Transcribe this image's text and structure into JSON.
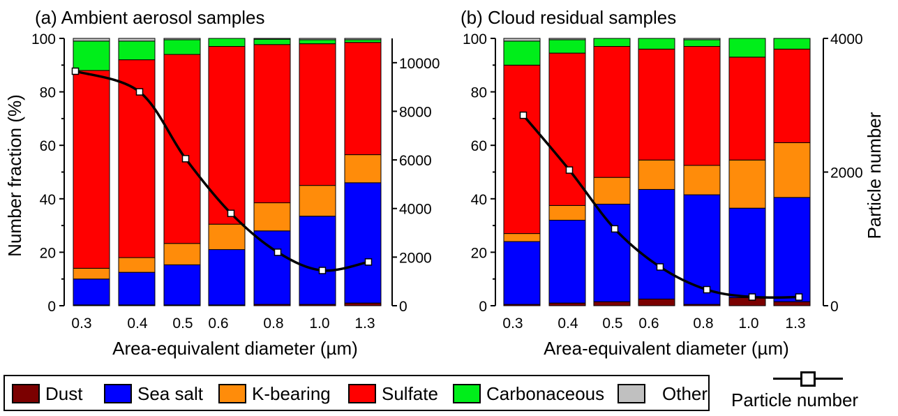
{
  "colors": {
    "Dust": "#7b0000",
    "Sea salt": "#0000ff",
    "K-bearing": "#ff8c0a",
    "Sulfate": "#ff0000",
    "Carbonaceous": "#00ee1a",
    "Other": "#c0c0c0"
  },
  "legend": {
    "items": [
      {
        "name": "Dust",
        "label": "Dust"
      },
      {
        "name": "Sea salt",
        "label": "Sea salt"
      },
      {
        "name": "K-bearing",
        "label": "K-bearing"
      },
      {
        "name": "Sulfate",
        "label": "Sulfate"
      },
      {
        "name": "Carbonaceous",
        "label": "Carbonaceous"
      },
      {
        "name": "Other",
        "label": "Other"
      }
    ],
    "particle_number_label": "Particle number"
  },
  "chart_data": [
    {
      "type": "bar",
      "stacked": true,
      "title": "(a) Ambient aerosol samples",
      "xlabel": "Area-equivalent diameter (µm)",
      "ylabel": "Number fraction (%)",
      "y2label": "",
      "ylim": [
        0,
        100
      ],
      "y2lim": [
        0,
        11000
      ],
      "yticks": [
        0,
        20,
        40,
        60,
        80,
        100
      ],
      "y2ticks": [
        0,
        2000,
        4000,
        6000,
        8000,
        10000
      ],
      "categories": [
        "0.3",
        "0.4",
        "0.5",
        "0.6",
        "0.8",
        "1.0",
        "1.3"
      ],
      "series": [
        {
          "name": "Dust",
          "values": [
            0.3,
            0.3,
            0.3,
            0.3,
            0.5,
            0.5,
            1
          ]
        },
        {
          "name": "Sea salt",
          "values": [
            9.7,
            12.2,
            15,
            20.7,
            27.5,
            33,
            45
          ]
        },
        {
          "name": "K-bearing",
          "values": [
            4,
            5.5,
            8,
            9.5,
            10.5,
            11.5,
            10.5
          ]
        },
        {
          "name": "Sulfate",
          "values": [
            74,
            74,
            70.7,
            66.5,
            59.2,
            53,
            42
          ]
        },
        {
          "name": "Carbonaceous",
          "values": [
            11,
            7,
            5.5,
            3,
            2,
            1.5,
            1
          ]
        },
        {
          "name": "Other",
          "values": [
            1,
            1,
            0.5,
            0,
            0.3,
            0.5,
            0.5
          ]
        }
      ],
      "particle_number": {
        "name": "Particle number",
        "x": [
          0.35,
          0.45,
          0.55,
          0.65,
          0.8,
          1.0,
          1.2
        ],
        "values": [
          9650,
          8800,
          6050,
          3800,
          2200,
          1450,
          1800
        ]
      }
    },
    {
      "type": "bar",
      "stacked": true,
      "title": "(b) Cloud residual samples",
      "xlabel": "Area-equivalent diameter (µm)",
      "ylabel": "",
      "y2label": "Particle number",
      "ylim": [
        0,
        100
      ],
      "y2lim": [
        0,
        4000
      ],
      "yticks": [
        0,
        20,
        40,
        60,
        80,
        100
      ],
      "y2ticks": [
        0,
        2000,
        4000
      ],
      "categories": [
        "0.3",
        "0.4",
        "0.5",
        "0.6",
        "0.8",
        "1.0",
        "1.3"
      ],
      "series": [
        {
          "name": "Dust",
          "values": [
            0.5,
            1,
            1.5,
            2.5,
            0.5,
            3,
            1.5
          ]
        },
        {
          "name": "Sea salt",
          "values": [
            23.5,
            31,
            36.5,
            41,
            41,
            33.5,
            39
          ]
        },
        {
          "name": "K-bearing",
          "values": [
            3,
            5.5,
            10,
            11,
            11,
            18,
            20.5
          ]
        },
        {
          "name": "Sulfate",
          "values": [
            63,
            57,
            49,
            41.5,
            44.5,
            38.5,
            35
          ]
        },
        {
          "name": "Carbonaceous",
          "values": [
            9,
            5,
            3,
            4,
            2.5,
            7,
            4
          ]
        },
        {
          "name": "Other",
          "values": [
            1,
            0.5,
            0,
            0,
            0.5,
            0,
            0
          ]
        }
      ],
      "particle_number": {
        "name": "Particle number",
        "x": [
          0.35,
          0.45,
          0.55,
          0.65,
          0.8,
          1.0,
          1.2
        ],
        "values": [
          2850,
          2030,
          1150,
          580,
          240,
          130,
          130
        ]
      }
    }
  ]
}
